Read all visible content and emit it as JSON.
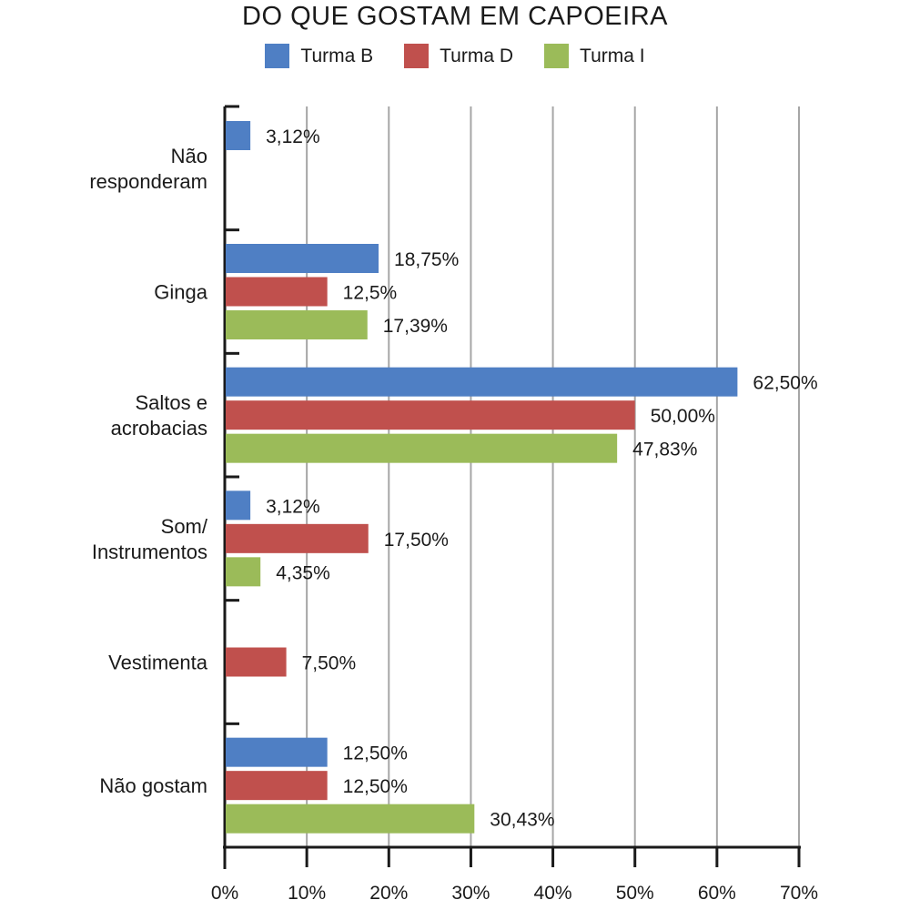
{
  "chart_data": {
    "type": "bar",
    "orientation": "horizontal",
    "title": "DO QUE GOSTAM EM CAPOEIRA",
    "categories": [
      [
        "Não",
        "responderam"
      ],
      [
        "Ginga"
      ],
      [
        "Saltos e",
        "acrobacias"
      ],
      [
        "Som/",
        "Instrumentos"
      ],
      [
        "Vestimenta"
      ],
      [
        "Não gostam"
      ]
    ],
    "series": [
      {
        "name": "Turma B",
        "color": "#4f7fc4",
        "values": [
          3.12,
          18.75,
          62.5,
          3.12,
          null,
          12.5
        ],
        "labels": [
          "3,12%",
          "18,75%",
          "62,50%",
          "3,12%",
          null,
          "12,50%"
        ]
      },
      {
        "name": "Turma D",
        "color": "#c0504d",
        "values": [
          null,
          12.5,
          50.0,
          17.5,
          7.5,
          12.5
        ],
        "labels": [
          null,
          "12,5%",
          "50,00%",
          "17,50%",
          "7,50%",
          "12,50%"
        ]
      },
      {
        "name": "Turma I",
        "color": "#9bbb59",
        "values": [
          null,
          17.39,
          47.83,
          4.35,
          null,
          30.43
        ],
        "labels": [
          null,
          "17,39%",
          "47,83%",
          "4,35%",
          null,
          "30,43%"
        ]
      }
    ],
    "xlim": [
      0,
      70
    ],
    "xticks": [
      0,
      10,
      20,
      30,
      40,
      50,
      60,
      70
    ],
    "xtick_labels": [
      "0%",
      "10%",
      "20%",
      "30%",
      "40%",
      "50%",
      "60%",
      "70%"
    ],
    "xlabel": "",
    "ylabel": "",
    "grid": true,
    "legend_position": "top-center"
  }
}
